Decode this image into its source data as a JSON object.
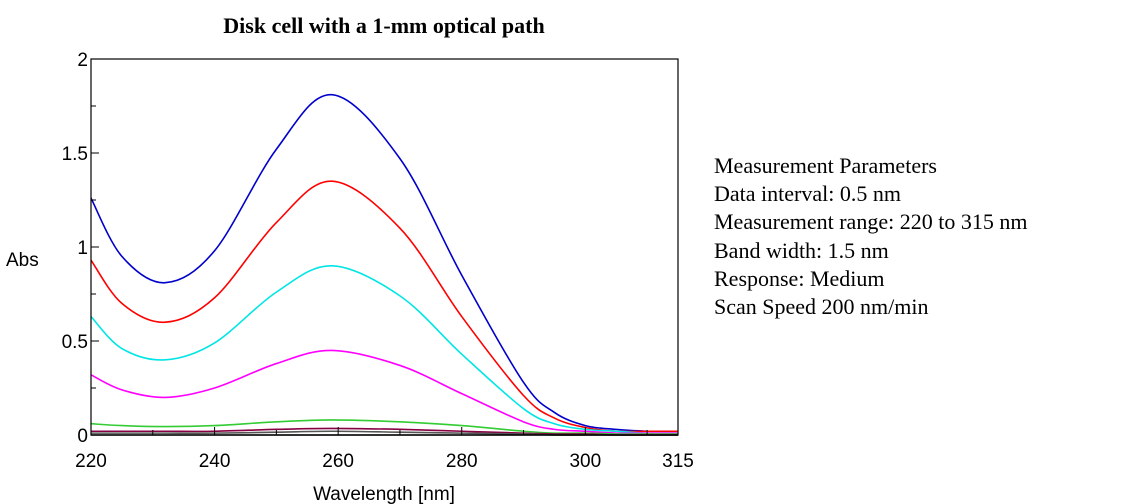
{
  "chart_data": {
    "type": "line",
    "title": "Disk cell with a 1-mm optical path",
    "xlabel": "Wavelength [nm]",
    "ylabel": "Abs",
    "xlim": [
      220,
      315
    ],
    "ylim": [
      0,
      2
    ],
    "x_ticks": [
      220,
      240,
      260,
      280,
      300,
      315
    ],
    "x_tick_labels": [
      "220",
      "240",
      "260",
      "280",
      "300",
      "315"
    ],
    "y_ticks": [
      0,
      0.5,
      1,
      1.5,
      2
    ],
    "y_tick_labels": [
      "0",
      "0.5",
      "1",
      "1.5",
      "2"
    ],
    "grid": false,
    "x": [
      220,
      225,
      232,
      240,
      250,
      259,
      270,
      280,
      290,
      295,
      300,
      305,
      310,
      315
    ],
    "series": [
      {
        "color": "#0000cc",
        "values": [
          1.26,
          0.95,
          0.81,
          0.98,
          1.52,
          1.81,
          1.47,
          0.85,
          0.28,
          0.12,
          0.05,
          0.03,
          0.02,
          0.02
        ]
      },
      {
        "color": "#ff0000",
        "values": [
          0.93,
          0.7,
          0.6,
          0.73,
          1.13,
          1.35,
          1.1,
          0.63,
          0.21,
          0.09,
          0.04,
          0.02,
          0.02,
          0.02
        ]
      },
      {
        "color": "#00e5e5",
        "values": [
          0.63,
          0.46,
          0.4,
          0.49,
          0.76,
          0.9,
          0.74,
          0.43,
          0.14,
          0.06,
          0.03,
          0.02,
          0.01,
          0.01
        ]
      },
      {
        "color": "#ff00ff",
        "values": [
          0.32,
          0.24,
          0.2,
          0.25,
          0.38,
          0.45,
          0.37,
          0.22,
          0.07,
          0.03,
          0.02,
          0.01,
          0.01,
          0.01
        ]
      },
      {
        "color": "#33cc33",
        "values": [
          0.06,
          0.05,
          0.045,
          0.05,
          0.07,
          0.08,
          0.07,
          0.05,
          0.02,
          0.01,
          0.01,
          0.005,
          0.005,
          0.005
        ]
      },
      {
        "color": "#880044",
        "values": [
          0.02,
          0.02,
          0.02,
          0.02,
          0.03,
          0.035,
          0.03,
          0.02,
          0.01,
          0.005,
          0.005,
          0.0,
          0.0,
          0.0
        ]
      },
      {
        "color": "#555555",
        "values": [
          0.01,
          0.01,
          0.01,
          0.01,
          0.015,
          0.02,
          0.015,
          0.01,
          0.005,
          0.0,
          0.0,
          0.0,
          0.0,
          0.0
        ]
      },
      {
        "color": "#000000",
        "values": [
          0.0,
          0.0,
          0.0,
          0.0,
          0.0,
          0.0,
          0.0,
          0.0,
          0.0,
          0.0,
          0.0,
          0.0,
          0.0,
          0.0
        ]
      }
    ]
  },
  "parameters": {
    "heading": "Measurement Parameters",
    "data_interval": "Data interval: 0.5 nm",
    "measurement_range": "Measurement range: 220 to 315 nm",
    "band_width": "Band width: 1.5 nm",
    "response": "Response: Medium",
    "scan_speed": "Scan Speed 200 nm/min"
  }
}
